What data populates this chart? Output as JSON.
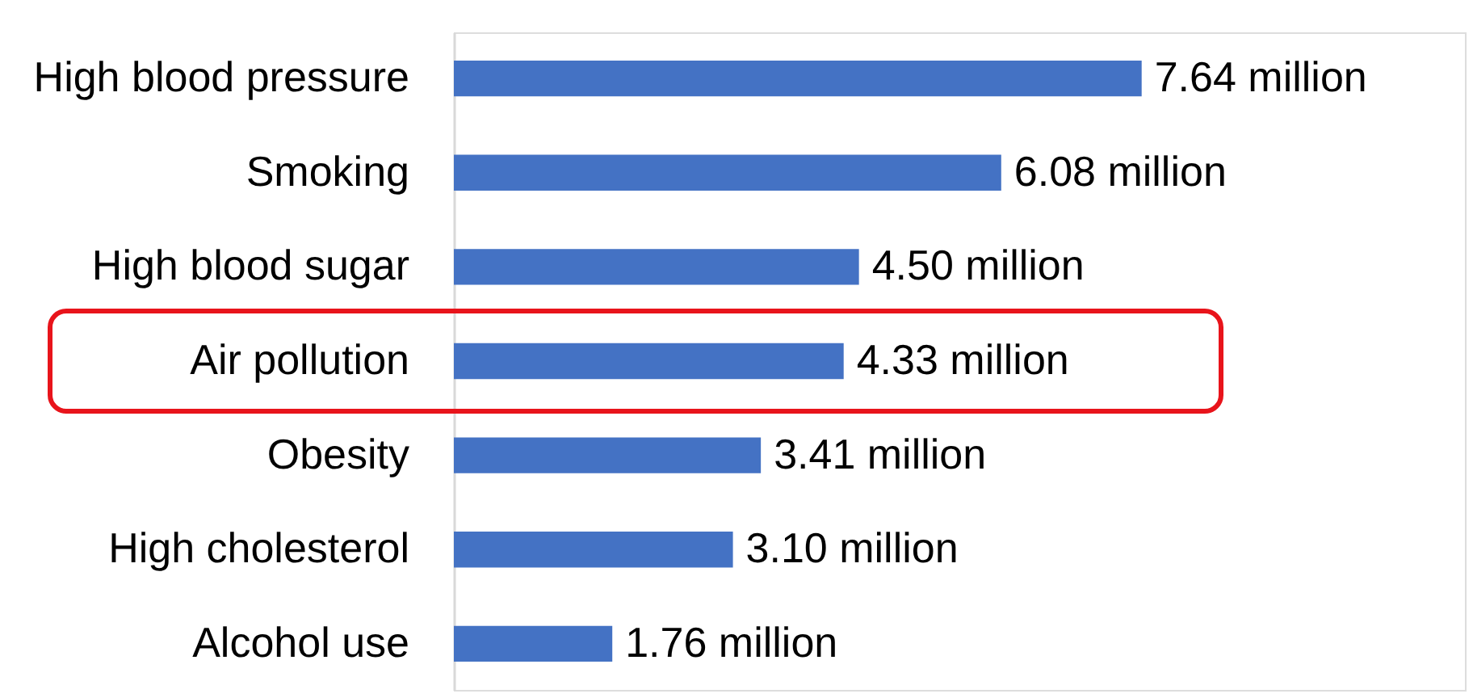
{
  "chart_data": {
    "type": "bar",
    "orientation": "horizontal",
    "categories": [
      "High blood pressure",
      "Smoking",
      "High blood sugar",
      "Air pollution",
      "Obesity",
      "High cholesterol",
      "Alcohol use"
    ],
    "values": [
      7.64,
      6.08,
      4.5,
      4.33,
      3.41,
      3.1,
      1.76
    ],
    "value_labels": [
      "7.64 million",
      "6.08 million",
      "4.50 million",
      "4.33 million",
      "3.41 million",
      "3.10 million",
      "1.76 million"
    ],
    "color": "#4472c4"
  }
}
